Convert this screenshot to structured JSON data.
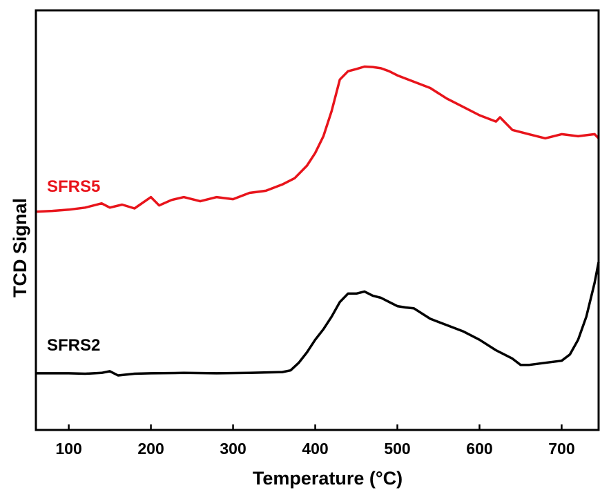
{
  "chart_data": {
    "type": "line",
    "title": "",
    "xlabel": "Temperature (°C)",
    "ylabel": "TCD Signal",
    "xlim": [
      60,
      745
    ],
    "ylim": [
      0,
      1
    ],
    "xticks": [
      100,
      200,
      300,
      400,
      500,
      600,
      700
    ],
    "xtick_labels": [
      "100",
      "200",
      "300",
      "400",
      "500",
      "600",
      "700"
    ],
    "yticks_shown": false,
    "grid": false,
    "legend": "none (series labeled inline at left)",
    "series": [
      {
        "name": "SFRS5",
        "color": "#e8141b",
        "x": [
          60,
          80,
          100,
          120,
          140,
          150,
          165,
          180,
          200,
          210,
          225,
          240,
          260,
          280,
          300,
          320,
          340,
          360,
          375,
          390,
          400,
          410,
          420,
          430,
          440,
          450,
          460,
          470,
          480,
          490,
          500,
          520,
          540,
          560,
          580,
          600,
          620,
          625,
          640,
          660,
          680,
          700,
          720,
          740,
          745
        ],
        "y": [
          0.52,
          0.522,
          0.525,
          0.53,
          0.54,
          0.53,
          0.537,
          0.528,
          0.555,
          0.535,
          0.548,
          0.555,
          0.545,
          0.555,
          0.55,
          0.565,
          0.57,
          0.585,
          0.6,
          0.63,
          0.66,
          0.7,
          0.76,
          0.835,
          0.855,
          0.86,
          0.866,
          0.865,
          0.862,
          0.855,
          0.845,
          0.83,
          0.815,
          0.79,
          0.77,
          0.75,
          0.735,
          0.745,
          0.715,
          0.705,
          0.695,
          0.705,
          0.7,
          0.705,
          0.695
        ]
      },
      {
        "name": "SFRS2",
        "color": "#000000",
        "x": [
          60,
          80,
          100,
          120,
          140,
          150,
          160,
          180,
          200,
          240,
          280,
          320,
          360,
          370,
          380,
          390,
          400,
          410,
          420,
          430,
          440,
          450,
          460,
          470,
          480,
          490,
          500,
          510,
          520,
          540,
          560,
          580,
          600,
          620,
          640,
          650,
          660,
          680,
          700,
          710,
          720,
          730,
          740,
          745
        ],
        "y": [
          0.135,
          0.135,
          0.135,
          0.134,
          0.136,
          0.14,
          0.13,
          0.134,
          0.135,
          0.136,
          0.135,
          0.136,
          0.138,
          0.142,
          0.16,
          0.185,
          0.215,
          0.24,
          0.27,
          0.305,
          0.325,
          0.325,
          0.33,
          0.32,
          0.315,
          0.305,
          0.295,
          0.292,
          0.29,
          0.265,
          0.25,
          0.235,
          0.215,
          0.19,
          0.17,
          0.155,
          0.155,
          0.16,
          0.165,
          0.18,
          0.215,
          0.27,
          0.35,
          0.4
        ]
      }
    ]
  }
}
